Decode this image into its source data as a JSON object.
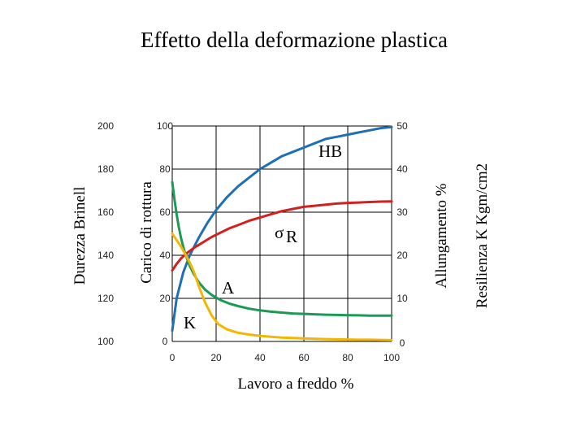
{
  "chart_data": {
    "type": "line",
    "title": "Effetto della deformazione plastica",
    "xlabel": "Lavoro a freddo %",
    "x_ticks": [
      "0",
      "20",
      "40",
      "60",
      "80",
      "100"
    ],
    "xlim": [
      0,
      100
    ],
    "grid": true,
    "axes": {
      "brinell": {
        "label": "Durezza Brinell",
        "ticks": [
          "100",
          "120",
          "140",
          "160",
          "180",
          "200"
        ],
        "range": [
          100,
          200
        ]
      },
      "rottura": {
        "label": "Carico di rottura",
        "ticks": [
          "0",
          "20",
          "40",
          "60",
          "80",
          "100"
        ],
        "range": [
          0,
          100
        ]
      },
      "allungamento": {
        "label": "Allungamento %",
        "ticks": [
          "0",
          "10",
          "20",
          "30",
          "40",
          "50"
        ],
        "range": [
          0,
          50
        ]
      },
      "resilienza": {
        "label": "Resilienza K Kgm/cm2"
      }
    },
    "series": [
      {
        "name": "HB",
        "axis": "brinell",
        "color": "#1f6fb4",
        "x": [
          0,
          2,
          5,
          8,
          12,
          16,
          20,
          25,
          30,
          35,
          40,
          45,
          50,
          55,
          60,
          65,
          70,
          75,
          80,
          85,
          90,
          95,
          100
        ],
        "y": [
          105,
          120,
          132,
          140,
          148,
          155,
          161,
          167,
          172,
          176,
          180,
          183,
          186,
          188,
          190,
          192,
          194,
          195,
          196,
          197,
          198,
          199,
          199.5
        ]
      },
      {
        "name": "σR",
        "axis": "rottura",
        "color": "#d02020",
        "x": [
          0,
          2,
          4,
          6,
          8,
          10,
          14,
          18,
          22,
          26,
          30,
          35,
          40,
          45,
          50,
          55,
          60,
          65,
          70,
          75,
          80,
          85,
          90,
          95,
          100
        ],
        "y": [
          33,
          36,
          38.5,
          40.5,
          42,
          43.5,
          46,
          48.5,
          50.5,
          52.5,
          54,
          56,
          57.5,
          59,
          60.5,
          61.5,
          62.5,
          63,
          63.5,
          64,
          64.3,
          64.5,
          64.7,
          64.9,
          65
        ]
      },
      {
        "name": "A",
        "axis": "allungamento",
        "color": "#1a9a55",
        "x": [
          0,
          1,
          2,
          3,
          4,
          5,
          6,
          8,
          10,
          12,
          15,
          18,
          22,
          26,
          30,
          35,
          40,
          45,
          50,
          55,
          60,
          65,
          70,
          75,
          80,
          85,
          90,
          95,
          100
        ],
        "y": [
          37,
          33,
          29.5,
          26.5,
          24,
          22,
          20.2,
          17.5,
          15.5,
          13.8,
          12,
          10.8,
          9.6,
          8.8,
          8.2,
          7.6,
          7.2,
          6.9,
          6.7,
          6.5,
          6.4,
          6.3,
          6.2,
          6.15,
          6.1,
          6.05,
          6,
          6,
          6
        ]
      },
      {
        "name": "K",
        "axis": "allungamento",
        "color": "#f2b705",
        "x": [
          0,
          2,
          4,
          6,
          8,
          10,
          12,
          15,
          18,
          21,
          25,
          30,
          35,
          40,
          45,
          50,
          55,
          60,
          65,
          70,
          75,
          80,
          85,
          90,
          95,
          100
        ],
        "y": [
          25,
          23.5,
          22,
          20.2,
          18.3,
          16,
          13,
          9,
          6,
          4,
          2.8,
          2,
          1.6,
          1.3,
          1.1,
          0.9,
          0.8,
          0.7,
          0.6,
          0.55,
          0.5,
          0.45,
          0.4,
          0.4,
          0.35,
          0.3
        ]
      }
    ]
  }
}
